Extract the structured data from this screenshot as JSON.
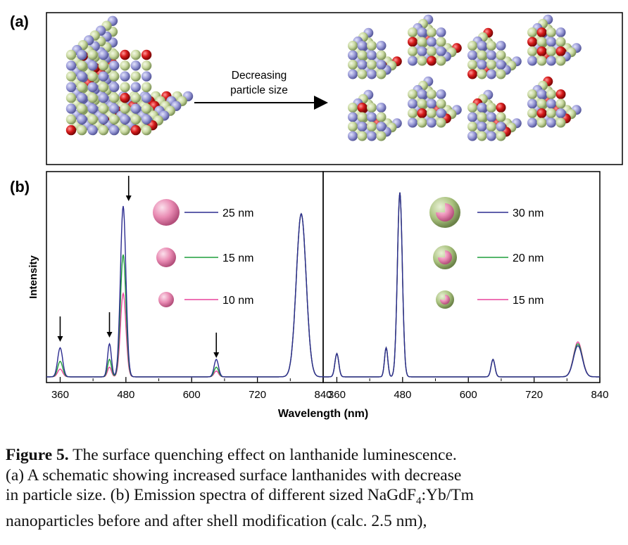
{
  "panel_a": {
    "label": "(a)",
    "arrow_text": [
      "Decreasing",
      "particle size"
    ]
  },
  "panel_b": {
    "label": "(b)"
  },
  "colors": {
    "green_atom": "#c9d9a0",
    "blue_atom": "#9a9bd8",
    "red_atom": "#d81c1c",
    "pink_sphere": "#e98bb3",
    "shell_green": "#a9c27e",
    "series_blue": "#2b2b8f",
    "series_green": "#1f9e3b",
    "series_pink": "#e8439b"
  },
  "chart_data": [
    {
      "type": "line",
      "xlabel": "Wavelength (nm)",
      "ylabel": "Intensity",
      "xlim": [
        335,
        840
      ],
      "xticks": [
        "360",
        "480",
        "600",
        "720",
        "840"
      ],
      "legend": [
        "25 nm",
        "15 nm",
        "10 nm"
      ],
      "arrows_at_nm": [
        360,
        450,
        485,
        645
      ],
      "peaks_nm": [
        360,
        450,
        475,
        645,
        800
      ],
      "series": [
        {
          "name": "25 nm",
          "peak_heights": [
            0.15,
            0.17,
            0.88,
            0.09,
            0.84
          ]
        },
        {
          "name": "15 nm",
          "peak_heights": [
            0.08,
            0.09,
            0.63,
            0.05,
            0.84
          ]
        },
        {
          "name": "10 nm",
          "peak_heights": [
            0.04,
            0.05,
            0.43,
            0.03,
            0.84
          ]
        }
      ]
    },
    {
      "type": "line",
      "xlabel": "Wavelength (nm)",
      "ylabel": "Intensity",
      "xlim": [
        335,
        840
      ],
      "xticks": [
        "360",
        "480",
        "600",
        "720",
        "840"
      ],
      "legend": [
        "30 nm",
        "20 nm",
        "15 nm"
      ],
      "peaks_nm": [
        360,
        450,
        475,
        645,
        800
      ],
      "series": [
        {
          "name": "30 nm",
          "peak_heights": [
            0.12,
            0.15,
            0.95,
            0.09,
            0.16
          ]
        },
        {
          "name": "20 nm",
          "peak_heights": [
            0.12,
            0.15,
            0.95,
            0.09,
            0.17
          ]
        },
        {
          "name": "15 nm",
          "peak_heights": [
            0.12,
            0.15,
            0.95,
            0.09,
            0.18
          ]
        }
      ]
    }
  ],
  "caption": {
    "figure_label": "Figure 5.",
    "line1": "The surface quenching effect on lanthanide luminescence.",
    "line2": "(a) A schematic showing increased surface lanthanides with decrease",
    "line3_pre": "in particle size. (b) Emission spectra of different sized NaGdF",
    "line3_sub": "4",
    "line3_post": ":Yb/Tm",
    "line4": "nanoparticles before and after shell modification (calc. 2.5 nm),"
  }
}
